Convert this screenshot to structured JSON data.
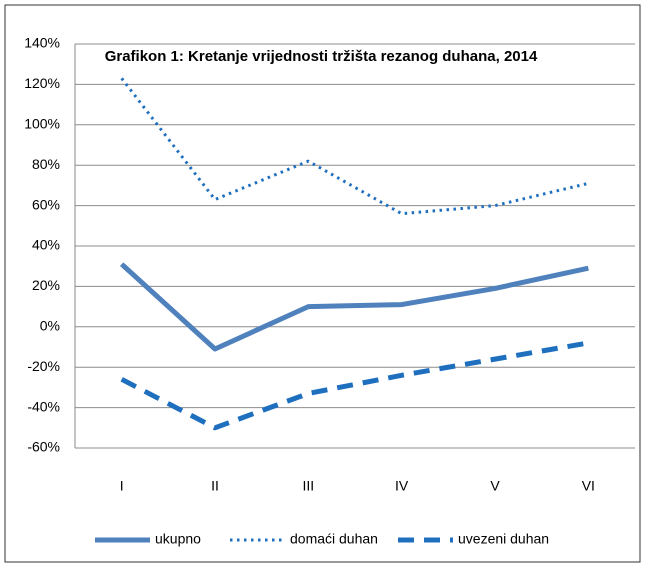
{
  "chart_data": {
    "type": "line",
    "title": "Grafikon 1: Kretanje vrijednosti tržišta rezanog duhana, 2014",
    "categories": [
      "I",
      "II",
      "III",
      "IV",
      "V",
      "VI"
    ],
    "series": [
      {
        "name": "ukupno",
        "color": "#4f81bd",
        "line_style": "solid",
        "values": [
          31,
          -11,
          10,
          11,
          19,
          29
        ]
      },
      {
        "name": "domaći duhan",
        "color": "#1f6fbf",
        "line_style": "dotted",
        "values": [
          123,
          63,
          82,
          56,
          60,
          71
        ]
      },
      {
        "name": "uvezeni duhan",
        "color": "#1f6fbf",
        "line_style": "dashed",
        "values": [
          -26,
          -50,
          -33,
          -24,
          -16,
          -8
        ]
      }
    ],
    "ylim": [
      -60,
      140
    ],
    "yticks": [
      {
        "value": -60,
        "label": "-60%"
      },
      {
        "value": -40,
        "label": "-40%"
      },
      {
        "value": -20,
        "label": "-20%"
      },
      {
        "value": 0,
        "label": "0%"
      },
      {
        "value": 20,
        "label": "20%"
      },
      {
        "value": 40,
        "label": "40%"
      },
      {
        "value": 60,
        "label": "60%"
      },
      {
        "value": 80,
        "label": "80%"
      },
      {
        "value": 100,
        "label": "100%"
      },
      {
        "value": 120,
        "label": "120%"
      },
      {
        "value": 140,
        "label": "140%"
      }
    ],
    "grid": true,
    "legend": "bottom"
  }
}
